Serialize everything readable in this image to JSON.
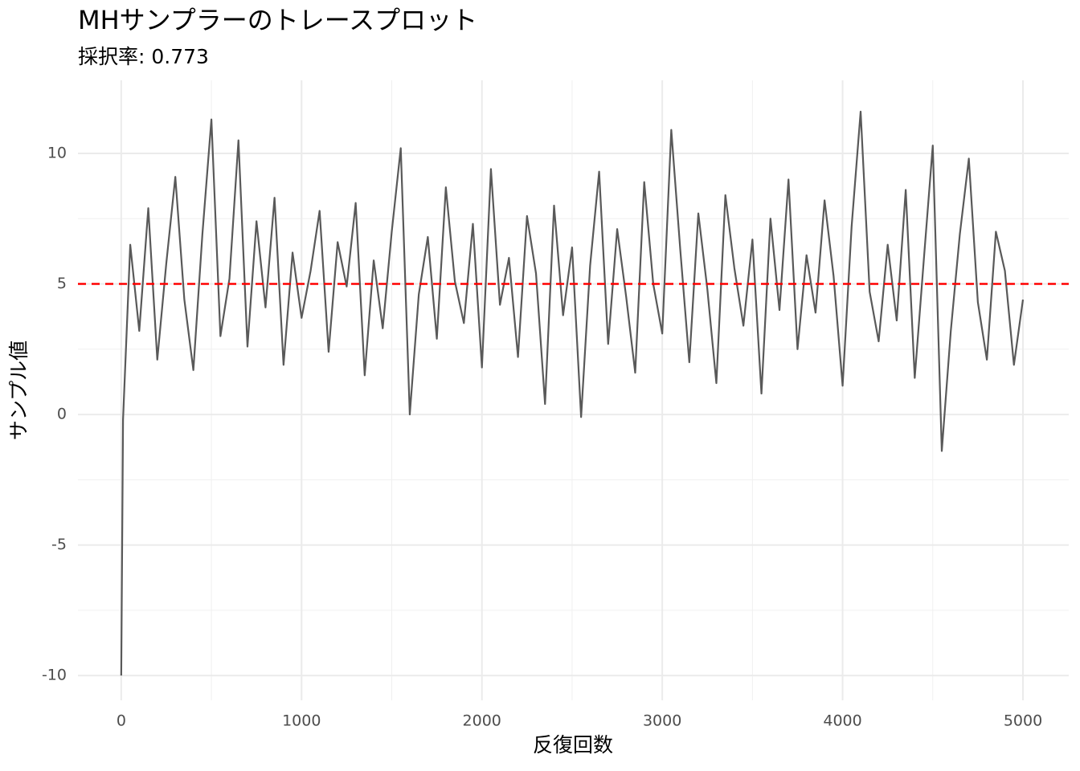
{
  "chart_data": {
    "type": "line",
    "title": "MHサンプラーのトレースプロット",
    "subtitle": "採択率: 0.773",
    "x_label": "反復回数",
    "y_label": "サンプル値",
    "x": [
      0,
      10,
      50,
      100,
      150,
      200,
      250,
      300,
      350,
      400,
      450,
      500,
      550,
      600,
      650,
      700,
      750,
      800,
      850,
      900,
      950,
      1000,
      1050,
      1100,
      1150,
      1200,
      1250,
      1300,
      1350,
      1400,
      1450,
      1500,
      1550,
      1600,
      1650,
      1700,
      1750,
      1800,
      1850,
      1900,
      1950,
      2000,
      2050,
      2100,
      2150,
      2200,
      2250,
      2300,
      2350,
      2400,
      2450,
      2500,
      2550,
      2600,
      2650,
      2700,
      2750,
      2800,
      2850,
      2900,
      2950,
      3000,
      3050,
      3100,
      3150,
      3200,
      3250,
      3300,
      3350,
      3400,
      3450,
      3500,
      3550,
      3600,
      3650,
      3700,
      3750,
      3800,
      3850,
      3900,
      3950,
      4000,
      4050,
      4100,
      4150,
      4200,
      4250,
      4300,
      4350,
      4400,
      4450,
      4500,
      4550,
      4600,
      4650,
      4700,
      4750,
      4800,
      4850,
      4900,
      4950,
      5000
    ],
    "series": [
      {
        "color": "#595959",
        "values": [
          -10,
          -0.2,
          6.5,
          3.2,
          7.9,
          2.1,
          5.8,
          9.1,
          4.4,
          1.7,
          6.9,
          11.3,
          3.0,
          5.2,
          10.5,
          2.6,
          7.4,
          4.1,
          8.3,
          1.9,
          6.2,
          3.7,
          5.5,
          7.8,
          2.4,
          6.6,
          4.9,
          8.1,
          1.5,
          5.9,
          3.3,
          7.0,
          10.2,
          0.0,
          4.6,
          6.8,
          2.9,
          8.7,
          5.1,
          3.5,
          7.3,
          1.8,
          9.4,
          4.2,
          6.0,
          2.2,
          7.6,
          5.4,
          0.4,
          8.0,
          3.8,
          6.4,
          -0.1,
          5.7,
          9.3,
          2.7,
          7.1,
          4.5,
          1.6,
          8.9,
          5.0,
          3.1,
          10.9,
          6.3,
          2.0,
          7.7,
          4.8,
          1.2,
          8.4,
          5.6,
          3.4,
          6.7,
          0.8,
          7.5,
          4.0,
          9.0,
          2.5,
          6.1,
          3.9,
          8.2,
          5.3,
          1.1,
          7.2,
          11.6,
          4.7,
          2.8,
          6.5,
          3.6,
          8.6,
          1.4,
          5.9,
          10.3,
          -1.4,
          3.2,
          6.9,
          9.8,
          4.3,
          2.1,
          7.0,
          5.5,
          1.9,
          4.4
        ]
      }
    ],
    "hline": {
      "value": 5,
      "color": "#ff0000"
    },
    "xlim": [
      -240,
      5254
    ],
    "ylim": [
      -10.95,
      12.8
    ],
    "xticks": [
      0,
      1000,
      2000,
      3000,
      4000,
      5000
    ],
    "yticks": [
      -10,
      -5,
      0,
      5,
      10
    ],
    "x_minor_ticks": [
      500,
      1500,
      2500,
      3500,
      4500
    ],
    "y_minor_ticks": [
      -7.5,
      -2.5,
      2.5,
      7.5
    ],
    "grid": true
  }
}
